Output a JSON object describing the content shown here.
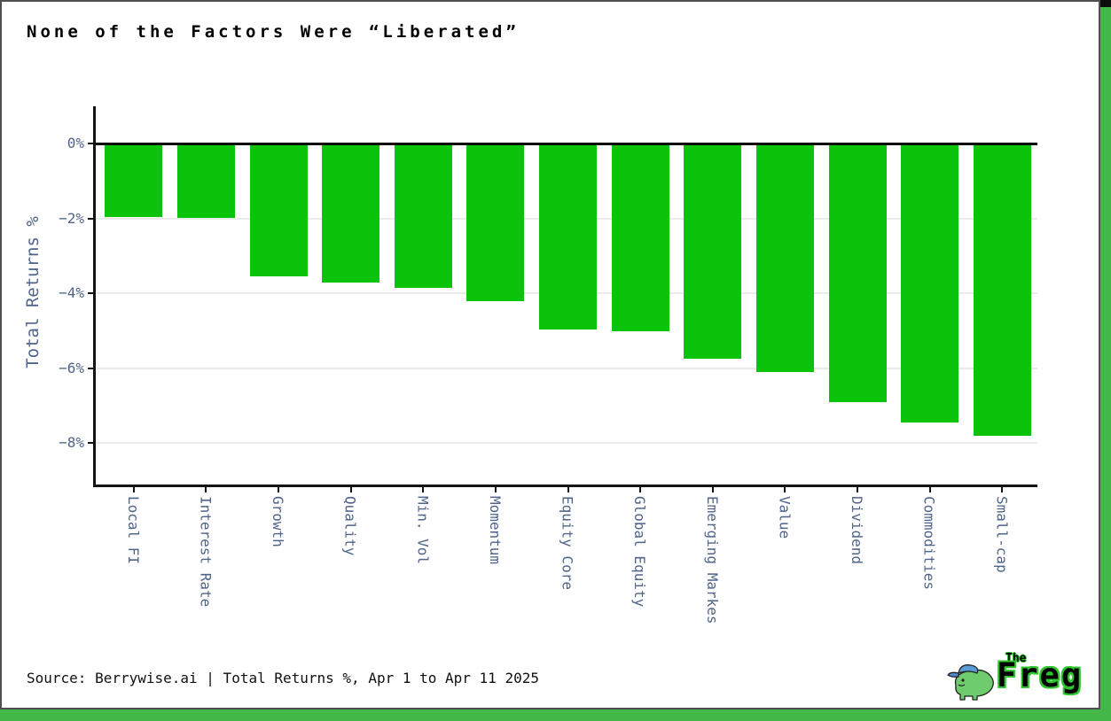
{
  "page": {
    "title": "None of the Factors Were “Liberated”"
  },
  "footer": {
    "source_line": "Source: Berrywise.ai | Total Returns %, Apr 1 to Apr 11 2025"
  },
  "logo": {
    "prefix": "The",
    "name": "Freg",
    "icon": "frog-with-blue-cap-icon",
    "body_color": "#6ecb6e",
    "cap_color": "#5b9bd5",
    "outline_color": "#2ec52e"
  },
  "chart_data": {
    "type": "bar",
    "title": "None of the Factors Were “Liberated”",
    "categories": [
      "Local FI",
      "Interest Rate",
      "Growth",
      "Quality",
      "Min. Vol",
      "Momentum",
      "Equity Core",
      "Global Equity",
      "Emerging Markes",
      "Value",
      "Dividend",
      "Commodities",
      "Small-cap"
    ],
    "values": [
      -1.95,
      -1.98,
      -3.55,
      -3.7,
      -3.85,
      -4.2,
      -4.95,
      -5.0,
      -5.75,
      -6.1,
      -6.9,
      -7.45,
      -7.8
    ],
    "xlabel": "",
    "ylabel": "Total Returns %",
    "yticks": [
      0,
      -2,
      -4,
      -6,
      -8
    ],
    "ytick_labels": [
      "0%",
      "−2%",
      "−4%",
      "−6%",
      "−8%"
    ],
    "ylim": [
      1.0,
      -9.1
    ],
    "grid": "horizontal gridlines at y ticks",
    "legend": "none",
    "bar_color": "#0bc30b",
    "zero_line": true
  },
  "colors": {
    "bar_green": "#0bc30b",
    "frame_green": "#43b747",
    "axis_text_blue": "#50648a",
    "gridline": "#ebebeb",
    "card_border": "#4f4f4f",
    "background": "#ffffff"
  }
}
